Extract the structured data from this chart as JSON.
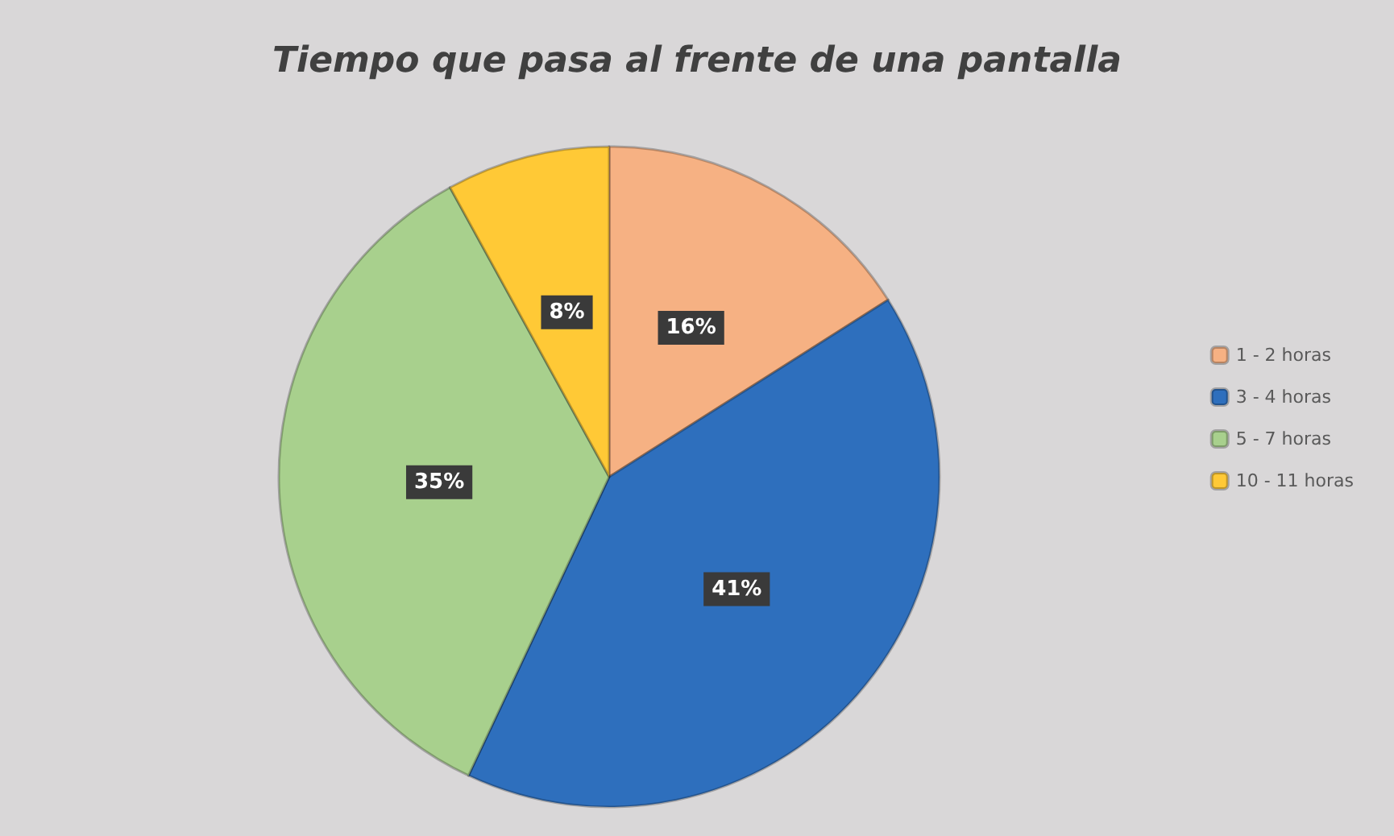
{
  "chart_data": {
    "type": "pie",
    "title": "Tiempo que pasa al frente de una pantalla",
    "categories": [
      "1 - 2 horas",
      "3 - 4 horas",
      "5 - 7 horas",
      "10 - 11 horas"
    ],
    "values": [
      16,
      41,
      35,
      8
    ],
    "colors": [
      "#f6b183",
      "#2e6fbd",
      "#a8d08d",
      "#ffc936"
    ],
    "value_labels": [
      "16%",
      "41%",
      "35%",
      "8%"
    ],
    "legend": "right"
  }
}
